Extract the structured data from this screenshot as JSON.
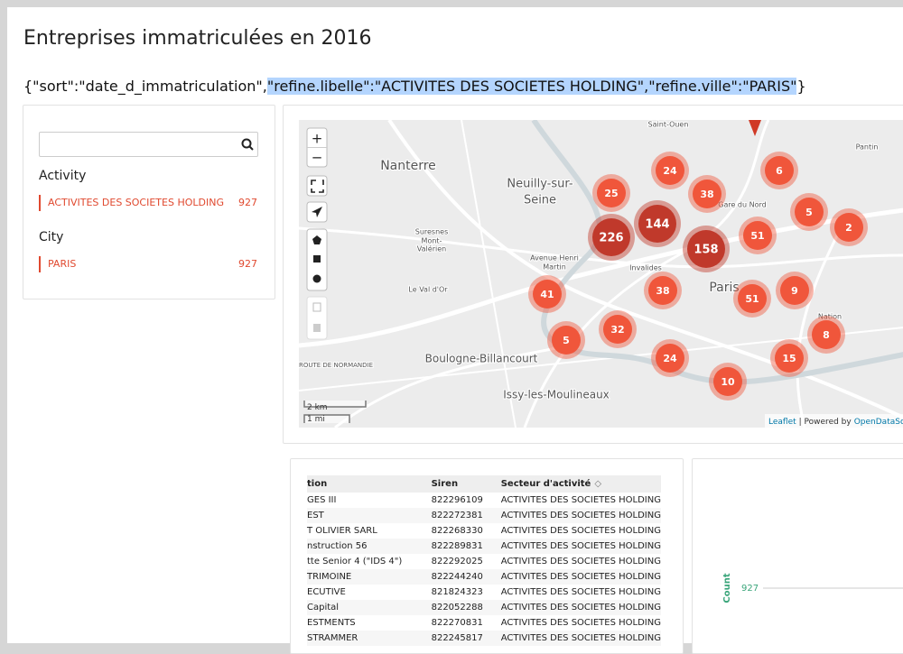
{
  "header": {
    "title": "Entreprises immatriculées en 2016",
    "query": {
      "before": "{\"sort\":\"date_d_immatriculation\",",
      "highlighted": "\"refine.libelle\":\"ACTIVITES DES SOCIETES HOLDING\",\"refine.ville\":\"PARIS\"",
      "after": "}"
    }
  },
  "filters": [
    {
      "title": "Activity",
      "items": [
        {
          "label": "ACTIVITES DES SOCIETES HOLDING",
          "count": 927
        }
      ]
    },
    {
      "title": "City",
      "items": [
        {
          "label": "PARIS",
          "count": 927
        }
      ]
    }
  ],
  "map": {
    "controls": [
      "+",
      "−"
    ],
    "places": [
      "Nanterre",
      "Neuilly-sur-",
      "Seine",
      "Suresnes",
      "Mont-",
      "Valérien",
      "Avenue Henri",
      "Martin",
      "Le Val d'Or",
      "Boulogne-Billancourt",
      "Issy-les-Moulineaux",
      "Saint-Ouen",
      "Pantin",
      "Invalides",
      "Paris",
      "Nation",
      "Gare du Nord",
      "ROUTE DE NORMANDIE"
    ],
    "clusters": [
      226,
      144,
      158,
      25,
      24,
      38,
      6,
      5,
      2,
      51,
      41,
      38,
      51,
      9,
      5,
      32,
      8,
      24,
      15,
      10
    ],
    "scale": [
      "2 km",
      "1 mi"
    ],
    "attribution": {
      "leaflet": "Leaflet",
      "powered": "| Powered by",
      "provider": "OpenDataSoft"
    }
  },
  "table": {
    "headers": [
      "tion",
      "Siren",
      "Secteur d'activité"
    ],
    "rows": [
      [
        "GES III",
        "822296109",
        "ACTIVITES DES SOCIETES HOLDING"
      ],
      [
        "EST",
        "822272381",
        "ACTIVITES DES SOCIETES HOLDING"
      ],
      [
        "T OLIVIER SARL",
        "822268330",
        "ACTIVITES DES SOCIETES HOLDING"
      ],
      [
        "nstruction 56",
        "822289831",
        "ACTIVITES DES SOCIETES HOLDING"
      ],
      [
        "tte Senior 4 (\"IDS 4\")",
        "822292025",
        "ACTIVITES DES SOCIETES HOLDING"
      ],
      [
        "TRIMOINE",
        "822244240",
        "ACTIVITES DES SOCIETES HOLDING"
      ],
      [
        "ECUTIVE",
        "821824323",
        "ACTIVITES DES SOCIETES HOLDING"
      ],
      [
        "Capital",
        "822052288",
        "ACTIVITES DES SOCIETES HOLDING"
      ],
      [
        "ESTMENTS",
        "822270831",
        "ACTIVITES DES SOCIETES HOLDING"
      ],
      [
        "STRAMMER",
        "822245817",
        "ACTIVITES DES SOCIETES HOLDING"
      ]
    ]
  },
  "chart": {
    "y_label": "Count",
    "yticks": [
      927
    ]
  }
}
